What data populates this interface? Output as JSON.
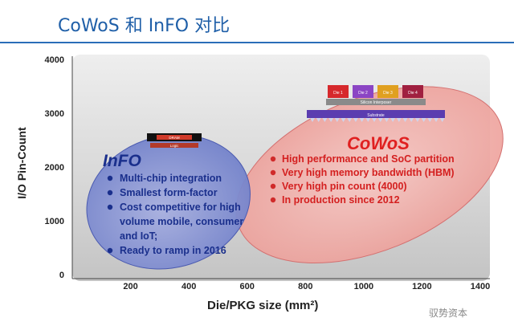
{
  "header": {
    "title": "CoWoS 和 InFO 对比"
  },
  "watermark": "驭势资本",
  "chart_data": {
    "type": "scatter",
    "xlabel": "Die/PKG size (mm²)",
    "ylabel": "I/O Pin-Count",
    "xlim": [
      0,
      1400
    ],
    "ylim": [
      0,
      4000
    ],
    "x_ticks": [
      "200",
      "400",
      "600",
      "800",
      "1000",
      "1200",
      "1400"
    ],
    "y_ticks": [
      "0",
      "1000",
      "2000",
      "3000",
      "4000"
    ],
    "grid": false,
    "regions": [
      {
        "name": "InFO",
        "color": "#4f62b8",
        "center": [
          330,
          1650
        ],
        "bullets": [
          "Multi-chip integration",
          "Smallest form-factor",
          "Cost competitive for high volume mobile, consumer and IoT;",
          "Ready to ramp in 2016"
        ],
        "package_labels": [
          "DRAM",
          "Logic"
        ]
      },
      {
        "name": "CoWoS",
        "color": "#e06a66",
        "center": [
          1020,
          2900
        ],
        "bullets": [
          "High performance and SoC partition",
          "Very high memory bandwidth (HBM)",
          "Very high pin count (4000)",
          "In production since 2012"
        ],
        "package_labels": [
          "Die 1",
          "Die 2",
          "Die 3",
          "Die 4",
          "Silicon Interposer",
          "Substrate"
        ]
      }
    ]
  }
}
